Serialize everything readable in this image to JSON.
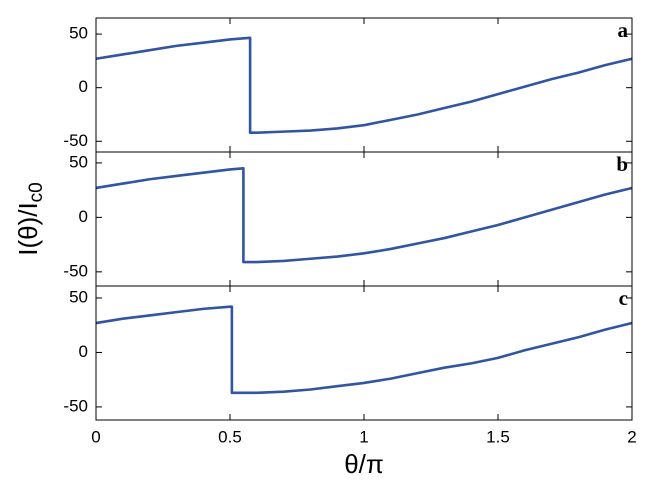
{
  "chart_data": [
    {
      "type": "line",
      "label": "a",
      "xlim": [
        0,
        2
      ],
      "ylim": [
        -60,
        65
      ],
      "xticks": [
        0,
        0.5,
        1,
        1.5,
        2
      ],
      "yticks": [
        -50,
        0,
        50
      ],
      "x": [
        0,
        0.1,
        0.2,
        0.3,
        0.4,
        0.5,
        0.575,
        0.575,
        0.6,
        0.7,
        0.8,
        0.9,
        1.0,
        1.1,
        1.2,
        1.3,
        1.4,
        1.5,
        1.6,
        1.7,
        1.8,
        1.9,
        2.0
      ],
      "series": [
        {
          "color": "#3155a3",
          "values": [
            27,
            31,
            35,
            39,
            42,
            45,
            46.5,
            -42,
            -42,
            -41,
            -40,
            -38,
            -35,
            -30,
            -25,
            -19,
            -13,
            -6,
            1,
            8,
            14,
            21,
            27
          ]
        }
      ]
    },
    {
      "type": "line",
      "label": "b",
      "ylabel": "I(θ)/I",
      "ylabel_subscript": "c0",
      "xlim": [
        0,
        2
      ],
      "ylim": [
        -63,
        60
      ],
      "xticks": [
        0,
        0.5,
        1,
        1.5,
        2
      ],
      "yticks": [
        -50,
        0,
        50
      ],
      "x": [
        0,
        0.1,
        0.2,
        0.3,
        0.4,
        0.5,
        0.55,
        0.55,
        0.6,
        0.7,
        0.8,
        0.9,
        1.0,
        1.1,
        1.2,
        1.3,
        1.4,
        1.5,
        1.6,
        1.7,
        1.8,
        1.9,
        2.0
      ],
      "series": [
        {
          "color": "#3155a3",
          "values": [
            27,
            31,
            35,
            38,
            41,
            44,
            45,
            -41,
            -41,
            -40,
            -38,
            -36,
            -33,
            -29,
            -24,
            -19,
            -13,
            -7,
            0,
            7,
            14,
            21,
            27
          ]
        }
      ]
    },
    {
      "type": "line",
      "label": "c",
      "xlabel": "θ/π",
      "xlim": [
        0,
        2
      ],
      "ylim": [
        -62,
        61
      ],
      "xticks": [
        0,
        0.5,
        1,
        1.5,
        2
      ],
      "yticks": [
        -50,
        0,
        50
      ],
      "x": [
        0,
        0.1,
        0.2,
        0.3,
        0.4,
        0.5,
        0.507,
        0.507,
        0.6,
        0.7,
        0.8,
        0.9,
        1.0,
        1.1,
        1.2,
        1.3,
        1.4,
        1.5,
        1.6,
        1.7,
        1.8,
        1.9,
        2.0
      ],
      "series": [
        {
          "color": "#3155a3",
          "values": [
            27,
            31,
            34,
            37,
            40,
            42,
            42,
            -37,
            -37,
            -36,
            -34,
            -31,
            -28,
            -24,
            -19,
            -14,
            -10,
            -5,
            2,
            8,
            14,
            21,
            27
          ]
        }
      ]
    }
  ]
}
